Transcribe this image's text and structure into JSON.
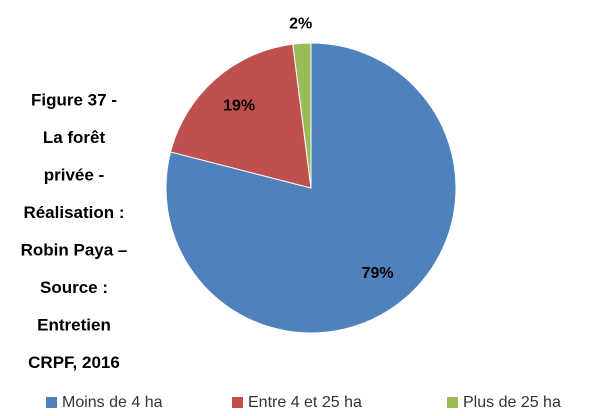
{
  "chart_data": {
    "type": "pie",
    "title_lines": [
      "Figure 37 -",
      "La forêt",
      "privée -",
      "Réalisation :",
      "Robin Paya –",
      "Source :",
      "Entretien",
      "CRPF, 2016"
    ],
    "categories": [
      "Moins de 4 ha",
      "Entre 4 et 25 ha",
      "Plus de 25 ha"
    ],
    "values": [
      79,
      19,
      2
    ],
    "value_labels": [
      "79%",
      "19%",
      "2%"
    ],
    "colors": [
      "#4f81bd",
      "#c0504d",
      "#9bbb59"
    ],
    "legend": "bottom"
  }
}
